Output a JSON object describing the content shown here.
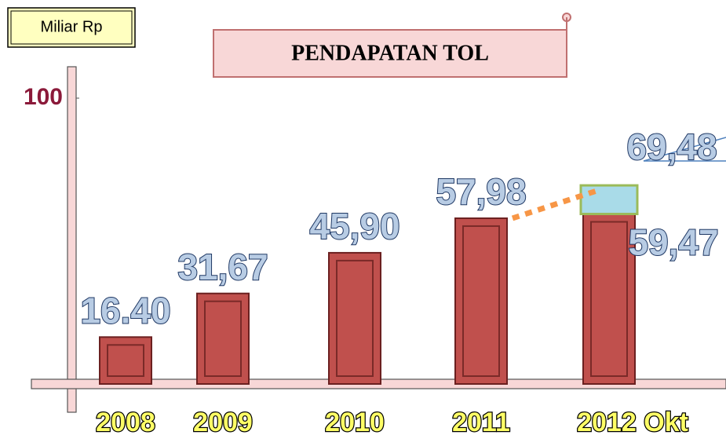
{
  "chart_data": {
    "type": "bar",
    "title": "PENDAPATAN TOL",
    "y_label": "Miliar Rp",
    "categories": [
      "2008",
      "2009",
      "2010",
      "2011",
      "2012 Okt"
    ],
    "series": [
      {
        "color": "#c0504d",
        "values": [
          16.4,
          31.67,
          45.9,
          57.98,
          59.47
        ],
        "value_labels": [
          "16.40",
          "31,67",
          "45,90",
          "57,98",
          "59,47"
        ]
      },
      {
        "color": "#a9dbe8",
        "values": [
          null,
          null,
          null,
          null,
          69.48
        ],
        "value_labels": [
          null,
          null,
          null,
          null,
          "69,48"
        ]
      }
    ],
    "ylim": [
      0,
      100
    ],
    "yticks": [
      100
    ]
  }
}
